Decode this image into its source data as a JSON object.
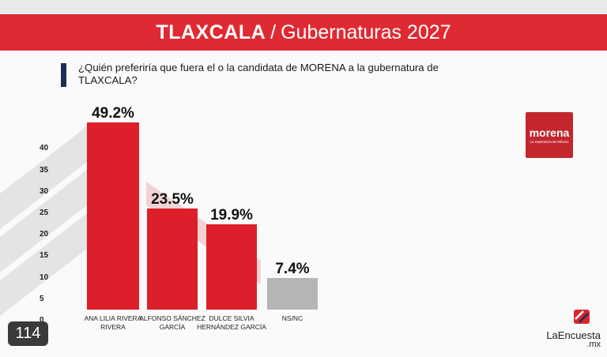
{
  "header": {
    "title_state": "TLAXCALA",
    "title_separator": "/",
    "title_rest": "Gubernaturas 2027"
  },
  "question": "¿Quién preferiría que fuera el o la candidata de MORENA a la gubernatura de TLAXCALA?",
  "chart_data": {
    "type": "bar",
    "categories": [
      "ANA LILIA RIVERA RIVERA",
      "ALFONSO SÁNCHEZ GARCÍA",
      "DULCE SILVIA HERNÁNDEZ GARCÍA",
      "NS/NC"
    ],
    "values": [
      49.2,
      23.5,
      19.9,
      7.4
    ],
    "value_labels": [
      "49.2%",
      "23.5%",
      "19.9%",
      "7.4%"
    ],
    "yticks": [
      "40",
      "35",
      "30",
      "25",
      "20",
      "15",
      "10",
      "5",
      "0"
    ],
    "colors": [
      "#dc1f2a",
      "#dc1f2a",
      "#dc1f2a",
      "#b5b5b5"
    ]
  },
  "logo": {
    "text": "morena",
    "subtext": "La esperanza de México"
  },
  "badge": "114",
  "brand": {
    "name": "LaEncuesta",
    "suffix": ".mx"
  }
}
